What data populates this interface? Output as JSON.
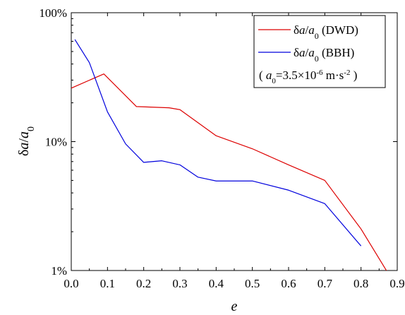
{
  "chart_data": {
    "type": "line",
    "xlabel": "e",
    "ylabel": {
      "prefix": "δ",
      "num": "a",
      "den": "a",
      "den_sub": "0"
    },
    "xlim": [
      0.0,
      0.9
    ],
    "ylim": [
      1,
      100
    ],
    "y_scale": "log",
    "x_ticks": [
      {
        "value": 0.0,
        "label": "0.0"
      },
      {
        "value": 0.1,
        "label": "0.1"
      },
      {
        "value": 0.2,
        "label": "0.2"
      },
      {
        "value": 0.3,
        "label": "0.3"
      },
      {
        "value": 0.4,
        "label": "0.4"
      },
      {
        "value": 0.5,
        "label": "0.5"
      },
      {
        "value": 0.6,
        "label": "0.6"
      },
      {
        "value": 0.7,
        "label": "0.7"
      },
      {
        "value": 0.8,
        "label": "0.8"
      },
      {
        "value": 0.9,
        "label": "0.9"
      }
    ],
    "y_ticks": [
      {
        "value": 1,
        "label": "1%"
      },
      {
        "value": 10,
        "label": "10%"
      },
      {
        "value": 100,
        "label": "100%"
      }
    ],
    "grid": false,
    "legend_position": "top-right",
    "series": [
      {
        "key": "dwd",
        "name": {
          "prefix": "δ",
          "num": "a",
          "den": "a",
          "den_sub": "0",
          "suffix": " (DWD)"
        },
        "color": "#dd0000",
        "x": [
          0.0,
          0.09,
          0.18,
          0.27,
          0.3,
          0.4,
          0.5,
          0.6,
          0.7,
          0.8,
          0.88
        ],
        "y": [
          26,
          33.5,
          18.7,
          18.3,
          17.7,
          11.1,
          8.8,
          6.6,
          5.0,
          2.1,
          0.9
        ]
      },
      {
        "key": "bbh",
        "name": {
          "prefix": "δ",
          "num": "a",
          "den": "a",
          "den_sub": "0",
          "suffix": " (BBH)"
        },
        "color": "#0000dd",
        "x": [
          0.01,
          0.05,
          0.1,
          0.15,
          0.2,
          0.25,
          0.3,
          0.35,
          0.4,
          0.5,
          0.6,
          0.7,
          0.8
        ],
        "y": [
          62,
          41,
          17,
          9.6,
          6.9,
          7.1,
          6.6,
          5.3,
          4.95,
          4.95,
          4.2,
          3.3,
          1.55
        ]
      }
    ],
    "legend_note": {
      "open": "( ",
      "var": "a",
      "sub": "0",
      "eq": "=3.5×10",
      "exp": "-6",
      "unit": " m·s",
      "unit_exp": "-2",
      "close": " )"
    }
  }
}
